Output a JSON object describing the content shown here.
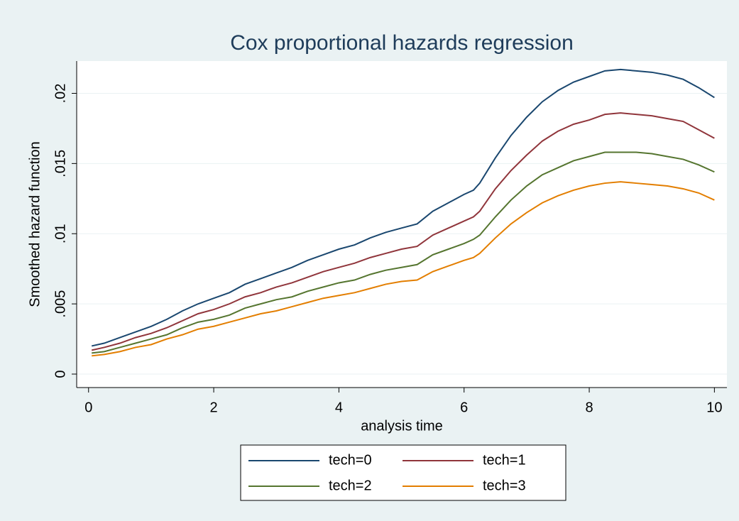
{
  "chart_data": {
    "type": "line",
    "title": "Cox proportional hazards regression",
    "x_label": "analysis time",
    "y_label": "Smoothed hazard function",
    "x": [
      0.05,
      0.25,
      0.5,
      0.75,
      1,
      1.25,
      1.5,
      1.75,
      2,
      2.25,
      2.5,
      2.75,
      3,
      3.25,
      3.5,
      3.75,
      4,
      4.25,
      4.5,
      4.75,
      5,
      5.25,
      5.5,
      5.75,
      6,
      6.15,
      6.25,
      6.5,
      6.75,
      7,
      7.25,
      7.5,
      7.75,
      8,
      8.25,
      8.5,
      8.75,
      9,
      9.25,
      9.5,
      9.75,
      10
    ],
    "series": [
      {
        "name": "tech=0",
        "color": "#1a476f",
        "values": [
          0.002,
          0.0022,
          0.0026,
          0.003,
          0.0034,
          0.0039,
          0.0045,
          0.005,
          0.0054,
          0.0058,
          0.0064,
          0.0068,
          0.0072,
          0.0076,
          0.0081,
          0.0085,
          0.0089,
          0.0092,
          0.0097,
          0.0101,
          0.0104,
          0.0107,
          0.0116,
          0.0122,
          0.0128,
          0.0131,
          0.0136,
          0.0154,
          0.017,
          0.0183,
          0.0194,
          0.0202,
          0.0208,
          0.0212,
          0.0216,
          0.0217,
          0.0216,
          0.0215,
          0.0213,
          0.021,
          0.0204,
          0.0197
        ]
      },
      {
        "name": "tech=1",
        "color": "#90353b",
        "values": [
          0.0017,
          0.0019,
          0.0022,
          0.0026,
          0.0029,
          0.0033,
          0.0038,
          0.0043,
          0.0046,
          0.005,
          0.0055,
          0.0058,
          0.0062,
          0.0065,
          0.0069,
          0.0073,
          0.0076,
          0.0079,
          0.0083,
          0.0086,
          0.0089,
          0.0091,
          0.0099,
          0.0104,
          0.0109,
          0.0112,
          0.0116,
          0.0132,
          0.0145,
          0.0156,
          0.0166,
          0.0173,
          0.0178,
          0.0181,
          0.0185,
          0.0186,
          0.0185,
          0.0184,
          0.0182,
          0.018,
          0.0174,
          0.0168
        ]
      },
      {
        "name": "tech=2",
        "color": "#55752f",
        "values": [
          0.0015,
          0.0016,
          0.0019,
          0.0022,
          0.0025,
          0.0028,
          0.0033,
          0.0037,
          0.0039,
          0.0042,
          0.0047,
          0.005,
          0.0053,
          0.0055,
          0.0059,
          0.0062,
          0.0065,
          0.0067,
          0.0071,
          0.0074,
          0.0076,
          0.0078,
          0.0085,
          0.0089,
          0.0093,
          0.0096,
          0.0099,
          0.0112,
          0.0124,
          0.0134,
          0.0142,
          0.0147,
          0.0152,
          0.0155,
          0.0158,
          0.0158,
          0.0158,
          0.0157,
          0.0155,
          0.0153,
          0.0149,
          0.0144
        ]
      },
      {
        "name": "tech=3",
        "color": "#e37e00",
        "values": [
          0.0013,
          0.0014,
          0.0016,
          0.0019,
          0.0021,
          0.0025,
          0.0028,
          0.0032,
          0.0034,
          0.0037,
          0.004,
          0.0043,
          0.0045,
          0.0048,
          0.0051,
          0.0054,
          0.0056,
          0.0058,
          0.0061,
          0.0064,
          0.0066,
          0.0067,
          0.0073,
          0.0077,
          0.0081,
          0.0083,
          0.0086,
          0.0097,
          0.0107,
          0.0115,
          0.0122,
          0.0127,
          0.0131,
          0.0134,
          0.0136,
          0.0137,
          0.0136,
          0.0135,
          0.0134,
          0.0132,
          0.0129,
          0.0124
        ]
      }
    ],
    "xlim": [
      -0.19,
      10.2
    ],
    "xticks": [
      0,
      2,
      4,
      6,
      8,
      10
    ],
    "ylim": [
      -0.00096,
      0.0223
    ],
    "yticks": [
      0,
      {
        "value": 0.005,
        "label": ".005"
      },
      {
        "value": 0.01,
        "label": ".01"
      },
      {
        "value": 0.015,
        "label": ".015"
      },
      {
        "value": 0.02,
        "label": ".02"
      }
    ],
    "grid": true,
    "legend": "bottom"
  }
}
